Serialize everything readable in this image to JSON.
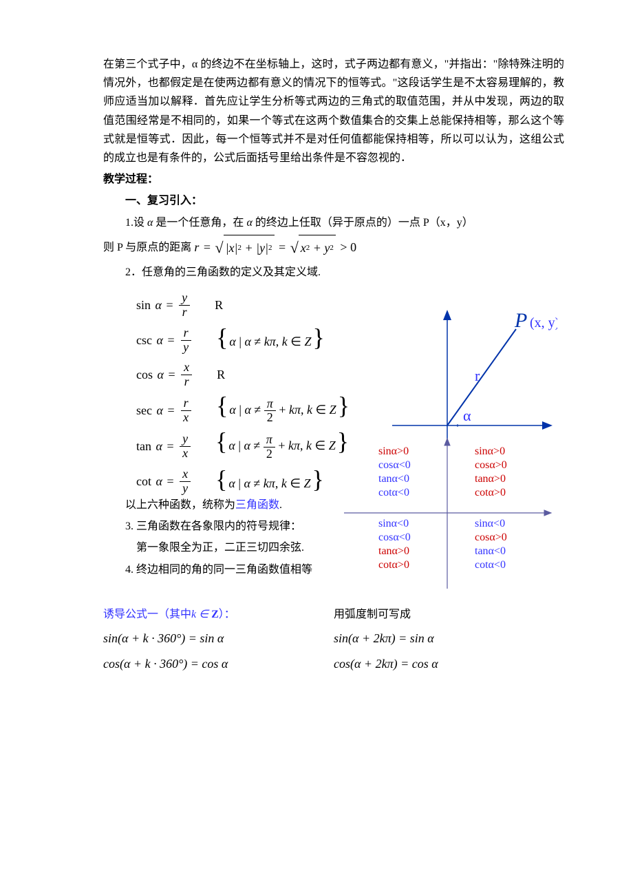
{
  "colors": {
    "text": "#000000",
    "blue": "#3333ff",
    "red": "#cc0000",
    "background": "#ffffff",
    "axis": "#0033aa",
    "quad_axis": "#333366"
  },
  "intro": {
    "p1": "在第三个式子中，α 的终边不在坐标轴上，这时，式子两边都有意义，\"并指出：\"除特殊注明的情况外，也都假定是在使两边都有意义的情况下的恒等式。\"这段话学生是不太容易理解的，教师应适当加以解释．首先应让学生分析等式两边的三角式的取值范围，并从中发现，两边的取值范围经常是不相同的，如果一个等式在这两个数值集合的交集上总能保持相等，那么这个等式就是恒等式．因此，每一个恒等式并不是对任何值都能保持相等，所以可以认为，这组公式的成立也是有条件的，公式后面括号里给出条件是不容忽视的．"
  },
  "headings": {
    "process": "教学过程：",
    "section1": "一、复习引入："
  },
  "items": {
    "i1_prefix": "1.设",
    "i1_mid": "是一个任意角，在",
    "i1_suffix": "的终边上任取（异于原点的）一点 P（x，y）",
    "i1_line2_prefix": "则 P 与原点的距离",
    "i2": "2．任意角的三角函数的定义及其定义域.",
    "i3": "3. 三角函数在各象限内的符号规律：",
    "i3_note": "第一象限全为正，二正三切四余弦.",
    "i4": "4. 终边相同的角的同一三角函数值相等",
    "summary_prefix": "以上六种函数，统称为",
    "summary_link": "三角函数",
    "induction_prefix": "诱导公式一（其中",
    "induction_mid": "k ∈ Z",
    "induction_suffix": "）：",
    "radian_label": "用弧度制可写成"
  },
  "trig_defs": [
    {
      "fn": "sin",
      "num": "y",
      "den": "r",
      "domain_type": "R"
    },
    {
      "fn": "csc",
      "num": "r",
      "den": "y",
      "domain_type": "set",
      "domain": "α | α ≠ kπ, k ∈ Z"
    },
    {
      "fn": "cos",
      "num": "x",
      "den": "r",
      "domain_type": "R"
    },
    {
      "fn": "sec",
      "num": "r",
      "den": "x",
      "domain_type": "set_half",
      "domain": "α | α ≠ π/2 + kπ, k ∈ Z"
    },
    {
      "fn": "tan",
      "num": "y",
      "den": "x",
      "domain_type": "set_half",
      "domain": "α | α ≠ π/2 + kπ, k ∈ Z"
    },
    {
      "fn": "cot",
      "num": "x",
      "den": "y",
      "domain_type": "set",
      "domain": "α | α ≠ kπ, k ∈ Z"
    }
  ],
  "point_diagram": {
    "P_label": "P",
    "P_coord": "(x, y)",
    "r_label": "r",
    "alpha_label": "α",
    "axis_color": "#0033aa",
    "r_color": "#0033aa",
    "P_color_italic": "#0033aa"
  },
  "quadrant_diagram": {
    "axis_color": "#5b5ba0",
    "quadrants": {
      "II": [
        {
          "text": "sinα>0",
          "color": "#cc0000"
        },
        {
          "text": "cosα<0",
          "color": "#3333ff"
        },
        {
          "text": "tanα<0",
          "color": "#3333ff"
        },
        {
          "text": "cotα<0",
          "color": "#3333ff"
        }
      ],
      "I": [
        {
          "text": "sinα>0",
          "color": "#cc0000"
        },
        {
          "text": "cosα>0",
          "color": "#cc0000"
        },
        {
          "text": "tanα>0",
          "color": "#cc0000"
        },
        {
          "text": "cotα>0",
          "color": "#cc0000"
        }
      ],
      "III": [
        {
          "text": "sinα<0",
          "color": "#3333ff"
        },
        {
          "text": "cosα<0",
          "color": "#3333ff"
        },
        {
          "text": "tanα>0",
          "color": "#cc0000"
        },
        {
          "text": "cotα>0",
          "color": "#cc0000"
        }
      ],
      "IV": [
        {
          "text": "sinα<0",
          "color": "#3333ff"
        },
        {
          "text": "cosα>0",
          "color": "#cc0000"
        },
        {
          "text": "tanα<0",
          "color": "#3333ff"
        },
        {
          "text": "cotα<0",
          "color": "#3333ff"
        }
      ]
    }
  },
  "induction_formulas": {
    "deg": [
      "sin(α + k · 360°) = sin α",
      "cos(α + k · 360°) = cos α"
    ],
    "rad": [
      "sin(α + 2kπ) = sin α",
      "cos(α + 2kπ) = cos α"
    ]
  }
}
